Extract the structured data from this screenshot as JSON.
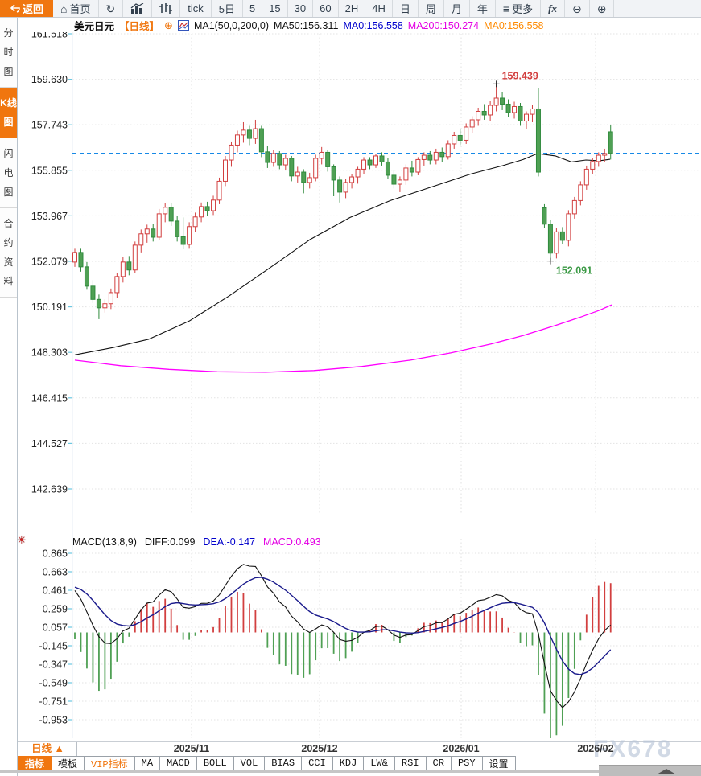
{
  "toolbar": {
    "items": [
      {
        "name": "back",
        "label": "返回"
      },
      {
        "name": "home",
        "label": "首页"
      },
      {
        "name": "refresh",
        "label": ""
      },
      {
        "name": "bar-chart",
        "label": ""
      },
      {
        "name": "candlestick",
        "label": ""
      },
      {
        "name": "tick",
        "label": "tick"
      },
      {
        "name": "five-day",
        "label": "5日"
      },
      {
        "name": "min5",
        "label": "5"
      },
      {
        "name": "min15",
        "label": "15"
      },
      {
        "name": "min30",
        "label": "30"
      },
      {
        "name": "min60",
        "label": "60"
      },
      {
        "name": "h2",
        "label": "2H"
      },
      {
        "name": "h4",
        "label": "4H"
      },
      {
        "name": "day",
        "label": "日"
      },
      {
        "name": "week",
        "label": "周"
      },
      {
        "name": "month",
        "label": "月"
      },
      {
        "name": "year",
        "label": "年"
      },
      {
        "name": "more",
        "label": "更多"
      },
      {
        "name": "fx",
        "label": "fx"
      },
      {
        "name": "zoom-out",
        "label": ""
      },
      {
        "name": "zoom-in",
        "label": ""
      }
    ]
  },
  "icons": {
    "home": "⌂",
    "refresh": "↻",
    "more": "≡",
    "zoom_out": "⊖",
    "zoom_in": "⊕",
    "plus_circle": "⊕",
    "indicator_settings": "☀"
  },
  "sidebar": {
    "tabs": [
      {
        "label": "分时图",
        "active": false
      },
      {
        "label": "K线图",
        "active": true
      },
      {
        "label": "闪电图",
        "active": false
      },
      {
        "label": "合约资料",
        "active": false
      }
    ]
  },
  "chart_header": {
    "symbol": "美元日元",
    "period": "【日线】",
    "ma_title": "MA1(50,0,200,0)",
    "ma50": "MA50:156.311",
    "ma0_blue": "MA0:156.558",
    "ma200": "MA200:150.274",
    "ma0_orange": "MA0:156.558"
  },
  "macd_header": {
    "title": "MACD(13,8,9)",
    "diff": "DIFF:0.099",
    "dea": "DEA:-0.147",
    "macd": "MACD:0.493"
  },
  "time_axis": {
    "period_button": "日线 ▲",
    "labels": [
      "2025/11",
      "2025/12",
      "2026/01",
      "2026/02"
    ]
  },
  "tabs": [
    {
      "label": "指标"
    },
    {
      "label": "模板"
    },
    {
      "label": "VIP指标"
    },
    {
      "label": "MA"
    },
    {
      "label": "MACD"
    },
    {
      "label": "BOLL"
    },
    {
      "label": "VOL"
    },
    {
      "label": "BIAS"
    },
    {
      "label": "CCI"
    },
    {
      "label": "KDJ"
    },
    {
      "label": "LW&"
    },
    {
      "label": "RSI"
    },
    {
      "label": "CR"
    },
    {
      "label": "PSY"
    },
    {
      "label": "设置"
    }
  ],
  "watermark": "FX678",
  "colors": {
    "accent_orange": "#f0760f",
    "up_red": "#d23f3f",
    "down_green": "#4fa054",
    "down_green_stroke": "#2f8a3c",
    "ma50_black": "#111111",
    "ma200_magenta": "#ff00ff",
    "current_price_blue": "#1789e6",
    "dea_blue": "#1a1a8c",
    "grid": "#e3e3e3",
    "axis_tick_cyan": "#6cc8e2",
    "high_label_red": "#d23f3f",
    "low_label_green": "#3c9a46"
  },
  "chart_data": {
    "type": "candlestick",
    "title": "美元日元 日线 (USD/JPY daily) with MA50/MA200 and MACD(13,8,9)",
    "price_axis_ticks": [
      161.518,
      159.63,
      157.743,
      155.855,
      153.967,
      152.079,
      150.191,
      148.303,
      146.415,
      144.527,
      142.639
    ],
    "macd_axis_ticks": [
      0.865,
      0.663,
      0.461,
      0.259,
      0.057,
      -0.145,
      -0.347,
      -0.549,
      -0.751,
      -0.953
    ],
    "x_labels": [
      "2025/11",
      "2025/12",
      "2026/01",
      "2026/02"
    ],
    "month_label_centers_svg_x": [
      216,
      375,
      551,
      718
    ],
    "current_price": 156.558,
    "high_marker": {
      "index": 70,
      "price": 159.439,
      "label": "159.439"
    },
    "low_marker": {
      "index": 79,
      "price": 152.091,
      "label": "152.091"
    },
    "macd_params": [
      13,
      8,
      9
    ],
    "macd_last": {
      "diff": 0.099,
      "dea": -0.147,
      "hist": 0.493
    },
    "candles_ohlc": [
      [
        152.05,
        152.6,
        151.85,
        152.45
      ],
      [
        152.45,
        152.6,
        151.65,
        151.85
      ],
      [
        151.85,
        152.05,
        150.9,
        151.05
      ],
      [
        151.05,
        151.3,
        150.35,
        150.5
      ],
      [
        150.5,
        150.7,
        149.68,
        150.15
      ],
      [
        150.15,
        150.5,
        149.95,
        150.32
      ],
      [
        150.32,
        150.95,
        150.1,
        150.78
      ],
      [
        150.78,
        151.6,
        150.55,
        151.45
      ],
      [
        151.45,
        152.25,
        151.2,
        152.05
      ],
      [
        152.05,
        152.3,
        151.5,
        151.72
      ],
      [
        151.72,
        152.9,
        151.6,
        152.75
      ],
      [
        152.75,
        153.4,
        152.45,
        153.22
      ],
      [
        153.22,
        153.6,
        152.85,
        153.42
      ],
      [
        153.42,
        153.62,
        152.9,
        153.08
      ],
      [
        153.08,
        154.25,
        152.98,
        154.05
      ],
      [
        154.05,
        154.48,
        153.7,
        154.32
      ],
      [
        154.32,
        154.5,
        153.55,
        153.75
      ],
      [
        153.75,
        153.95,
        152.9,
        153.1
      ],
      [
        153.1,
        153.9,
        152.58,
        152.78
      ],
      [
        152.78,
        153.7,
        152.6,
        153.52
      ],
      [
        153.52,
        154.1,
        153.3,
        153.92
      ],
      [
        153.92,
        154.52,
        153.7,
        154.35
      ],
      [
        154.35,
        154.55,
        153.95,
        154.18
      ],
      [
        154.18,
        154.8,
        154.0,
        154.62
      ],
      [
        154.62,
        155.55,
        154.45,
        155.4
      ],
      [
        155.4,
        156.45,
        155.2,
        156.28
      ],
      [
        156.28,
        157.05,
        156.0,
        156.9
      ],
      [
        156.9,
        157.5,
        156.6,
        157.32
      ],
      [
        157.32,
        157.85,
        157.0,
        157.52
      ],
      [
        157.52,
        157.7,
        156.9,
        157.18
      ],
      [
        157.18,
        157.95,
        156.95,
        157.58
      ],
      [
        157.58,
        157.7,
        156.4,
        156.62
      ],
      [
        156.62,
        156.85,
        155.95,
        156.18
      ],
      [
        156.18,
        156.7,
        156.0,
        156.55
      ],
      [
        156.55,
        156.65,
        155.9,
        156.08
      ],
      [
        156.08,
        156.5,
        155.85,
        156.35
      ],
      [
        156.35,
        156.45,
        155.4,
        155.62
      ],
      [
        155.62,
        156.0,
        155.35,
        155.78
      ],
      [
        155.78,
        155.9,
        154.9,
        155.35
      ],
      [
        155.35,
        155.75,
        155.1,
        155.55
      ],
      [
        155.55,
        156.5,
        155.4,
        156.35
      ],
      [
        156.35,
        156.82,
        156.1,
        156.6
      ],
      [
        156.6,
        156.7,
        155.8,
        156.0
      ],
      [
        156.0,
        156.1,
        154.78,
        155.45
      ],
      [
        155.45,
        155.6,
        154.52,
        154.95
      ],
      [
        154.95,
        155.5,
        154.7,
        155.35
      ],
      [
        155.35,
        155.7,
        155.1,
        155.58
      ],
      [
        155.58,
        156.0,
        155.3,
        155.9
      ],
      [
        155.9,
        156.4,
        155.7,
        156.28
      ],
      [
        156.28,
        156.4,
        155.9,
        156.08
      ],
      [
        156.08,
        156.55,
        155.95,
        156.45
      ],
      [
        156.45,
        156.6,
        156.05,
        156.2
      ],
      [
        156.2,
        156.35,
        155.5,
        155.65
      ],
      [
        155.65,
        155.85,
        155.1,
        155.28
      ],
      [
        155.28,
        155.6,
        154.95,
        155.45
      ],
      [
        155.45,
        156.1,
        155.25,
        155.95
      ],
      [
        155.95,
        156.25,
        155.6,
        155.78
      ],
      [
        155.78,
        156.4,
        155.65,
        156.3
      ],
      [
        156.3,
        156.6,
        156.05,
        156.48
      ],
      [
        156.48,
        156.65,
        156.1,
        156.28
      ],
      [
        156.28,
        156.75,
        156.1,
        156.6
      ],
      [
        156.6,
        156.8,
        156.2,
        156.42
      ],
      [
        156.42,
        157.1,
        156.3,
        156.95
      ],
      [
        156.95,
        157.45,
        156.75,
        157.3
      ],
      [
        157.3,
        157.55,
        156.9,
        157.1
      ],
      [
        157.1,
        157.8,
        156.95,
        157.65
      ],
      [
        157.65,
        158.1,
        157.4,
        157.95
      ],
      [
        157.95,
        158.45,
        157.7,
        158.3
      ],
      [
        158.3,
        158.6,
        157.95,
        158.15
      ],
      [
        158.15,
        158.75,
        157.9,
        158.55
      ],
      [
        158.55,
        159.439,
        158.3,
        158.85
      ],
      [
        158.85,
        159.1,
        158.35,
        158.6
      ],
      [
        158.6,
        158.8,
        158.05,
        158.25
      ],
      [
        158.25,
        158.7,
        158.0,
        158.5
      ],
      [
        158.5,
        158.65,
        157.7,
        157.9
      ],
      [
        157.9,
        158.3,
        157.55,
        158.18
      ],
      [
        158.18,
        158.55,
        157.85,
        158.4
      ],
      [
        158.4,
        159.25,
        155.6,
        155.78
      ],
      [
        154.3,
        154.45,
        153.45,
        153.62
      ],
      [
        153.62,
        153.8,
        152.091,
        152.42
      ],
      [
        152.42,
        153.45,
        152.2,
        153.3
      ],
      [
        153.3,
        153.5,
        152.8,
        152.95
      ],
      [
        152.95,
        154.2,
        152.7,
        154.05
      ],
      [
        154.05,
        154.75,
        153.85,
        154.6
      ],
      [
        154.6,
        155.4,
        154.4,
        155.25
      ],
      [
        155.25,
        156.05,
        155.05,
        155.9
      ],
      [
        155.9,
        156.35,
        155.7,
        156.22
      ],
      [
        156.22,
        156.6,
        156.0,
        156.48
      ],
      [
        156.48,
        156.75,
        156.2,
        156.55
      ],
      [
        157.45,
        157.75,
        156.3,
        156.56
      ]
    ],
    "macd_warmup_closes": [
      148.6,
      149.0,
      149.5,
      150.0,
      150.5,
      151.0,
      151.5,
      151.9,
      152.2,
      152.4,
      152.55,
      152.6,
      152.6,
      152.55,
      152.5
    ],
    "ma50_points": [
      [
        93,
        148.2
      ],
      [
        140,
        148.5
      ],
      [
        185,
        148.85
      ],
      [
        235,
        149.6
      ],
      [
        285,
        150.65
      ],
      [
        335,
        151.8
      ],
      [
        385,
        152.98
      ],
      [
        435,
        153.9
      ],
      [
        485,
        154.6
      ],
      [
        535,
        155.15
      ],
      [
        585,
        155.7
      ],
      [
        625,
        156.05
      ],
      [
        650,
        156.3
      ],
      [
        668,
        156.55
      ],
      [
        690,
        156.45
      ],
      [
        710,
        156.2
      ],
      [
        728,
        156.28
      ],
      [
        745,
        156.25
      ],
      [
        758,
        156.311
      ]
    ],
    "ma200_points": [
      [
        93,
        147.98
      ],
      [
        150,
        147.75
      ],
      [
        210,
        147.6
      ],
      [
        270,
        147.5
      ],
      [
        330,
        147.48
      ],
      [
        390,
        147.55
      ],
      [
        450,
        147.72
      ],
      [
        510,
        147.98
      ],
      [
        560,
        148.28
      ],
      [
        610,
        148.65
      ],
      [
        650,
        149.0
      ],
      [
        690,
        149.42
      ],
      [
        720,
        149.75
      ],
      [
        745,
        150.05
      ],
      [
        760,
        150.274
      ]
    ]
  }
}
